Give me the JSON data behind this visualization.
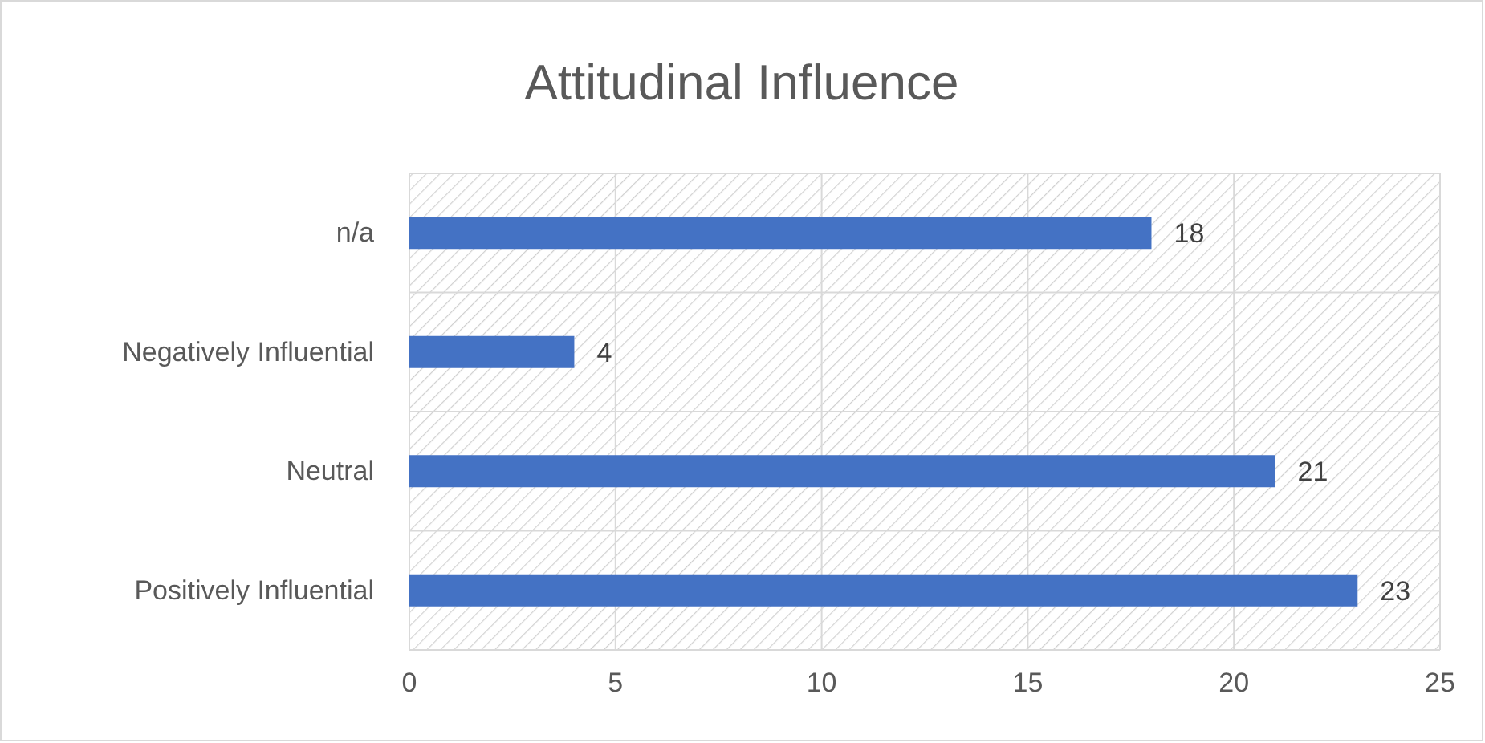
{
  "chart_data": {
    "type": "bar",
    "title": "Attitudinal Influence",
    "orientation": "horizontal",
    "categories": [
      "n/a",
      "Negatively Influential",
      "Neutral",
      "Positively Influential"
    ],
    "values": [
      18,
      4,
      21,
      23
    ],
    "color": "#4472c4",
    "xlim": [
      0,
      25
    ],
    "xticks": [
      0,
      5,
      10,
      15,
      20,
      25
    ],
    "grid": true,
    "data_labels": true
  }
}
